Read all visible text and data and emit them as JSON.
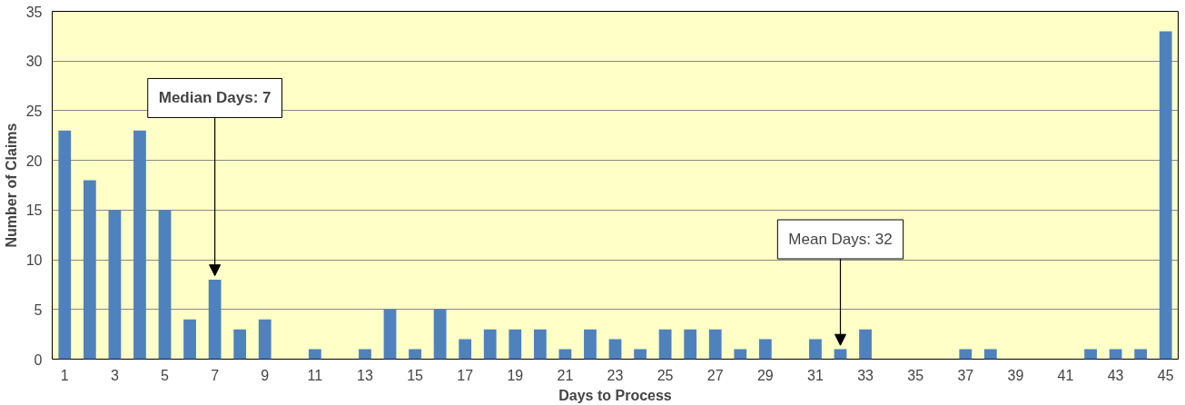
{
  "chart_data": {
    "type": "bar",
    "xlabel": "Days to Process",
    "ylabel": "Number of Claims",
    "x": [
      1,
      2,
      3,
      4,
      5,
      6,
      7,
      8,
      9,
      10,
      11,
      12,
      13,
      14,
      15,
      16,
      17,
      18,
      19,
      20,
      21,
      22,
      23,
      24,
      25,
      26,
      27,
      28,
      29,
      30,
      31,
      32,
      33,
      34,
      35,
      36,
      37,
      38,
      39,
      40,
      41,
      42,
      43,
      44,
      45
    ],
    "values": [
      23,
      18,
      15,
      23,
      15,
      4,
      8,
      3,
      4,
      0,
      1,
      0,
      1,
      5,
      1,
      5,
      2,
      3,
      3,
      3,
      1,
      3,
      2,
      1,
      3,
      3,
      3,
      1,
      2,
      0,
      2,
      1,
      3,
      0,
      0,
      0,
      1,
      1,
      0,
      0,
      0,
      1,
      1,
      1,
      33
    ],
    "color": "#4f81bd",
    "xlim": [
      0.5,
      45.5
    ],
    "xticks": [
      1,
      3,
      5,
      7,
      9,
      11,
      13,
      15,
      17,
      19,
      21,
      23,
      25,
      27,
      29,
      31,
      33,
      35,
      37,
      39,
      41,
      43,
      45
    ],
    "ylim": [
      0,
      35
    ],
    "yticks": [
      0,
      5,
      10,
      15,
      20,
      25,
      30,
      35
    ],
    "grid": "y",
    "annotations": [
      {
        "text": "Median Days: 7",
        "x": 7,
        "y": 8
      },
      {
        "text": "Mean Days: 32",
        "x": 32,
        "y": 1
      }
    ]
  }
}
